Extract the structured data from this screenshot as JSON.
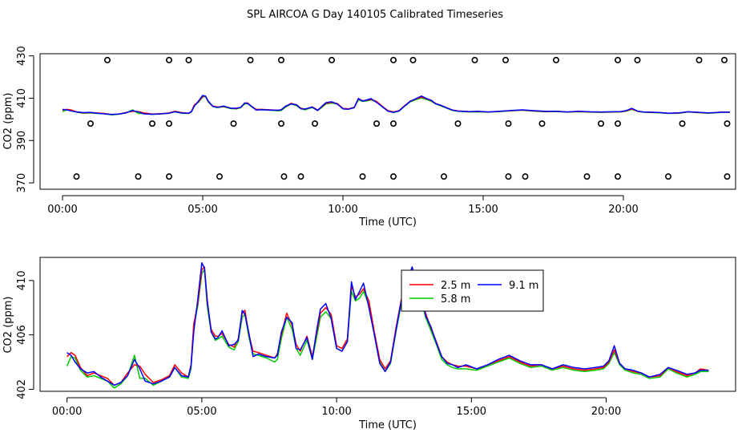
{
  "title": "SPL AIRCOA G  Day 140105  Calibrated Timeseries",
  "colors": {
    "s25": "#ff0000",
    "s58": "#00cc00",
    "s91": "#0000ff",
    "axis": "#000000"
  },
  "chart_data": [
    {
      "type": "line",
      "name": "overview",
      "xlabel": "Time (UTC)",
      "ylabel": "CO2 (ppm)",
      "xlim": [
        -0.8,
        24.0
      ],
      "ylim": [
        367,
        431
      ],
      "x_ticks": [
        0,
        5,
        10,
        15,
        20
      ],
      "x_tick_labels": [
        "00:00",
        "05:00",
        "10:00",
        "15:00",
        "20:00"
      ],
      "y_ticks": [
        370,
        390,
        410,
        430
      ],
      "y_tick_labels": [
        "370",
        "390",
        "410",
        "430"
      ],
      "series": [
        {
          "name": "2.5 m",
          "color_key": "s25"
        },
        {
          "name": "5.8 m",
          "color_key": "s58"
        },
        {
          "name": "9.1 m",
          "color_key": "s91"
        }
      ],
      "calibration_points": {
        "marker": "open-circle",
        "high": {
          "y": 428,
          "x": [
            1.6,
            3.8,
            4.5,
            6.7,
            7.8,
            9.6,
            11.8,
            12.5,
            14.7,
            15.8,
            17.6,
            19.8,
            20.5,
            22.7,
            23.6
          ]
        },
        "mid": {
          "y": 398,
          "x": [
            1.0,
            3.2,
            3.8,
            6.1,
            7.8,
            9.0,
            11.2,
            11.8,
            14.1,
            15.9,
            17.1,
            19.2,
            19.8,
            22.1,
            23.7
          ]
        },
        "low": {
          "y": 373,
          "x": [
            0.5,
            2.7,
            3.8,
            5.6,
            7.9,
            8.5,
            10.7,
            11.8,
            13.6,
            15.9,
            16.5,
            18.7,
            19.8,
            21.6,
            23.7
          ]
        }
      }
    },
    {
      "type": "line",
      "name": "detail",
      "xlabel": "Time (UTC)",
      "ylabel": "CO2 (ppm)",
      "xlim": [
        -1.0,
        24.8
      ],
      "ylim": [
        401.85,
        411.7
      ],
      "x_ticks": [
        0,
        5,
        10,
        15,
        20
      ],
      "x_tick_labels": [
        "00:00",
        "05:00",
        "10:00",
        "15:00",
        "20:00"
      ],
      "y_ticks": [
        402,
        406,
        410
      ],
      "y_tick_labels": [
        "402",
        "406",
        "410"
      ],
      "legend": {
        "position": "top-center",
        "entries": [
          "2.5 m",
          "9.1 m",
          "5.8 m"
        ]
      },
      "x": [
        0.0,
        0.15,
        0.3,
        0.5,
        0.75,
        1.0,
        1.25,
        1.5,
        1.75,
        2.0,
        2.25,
        2.5,
        2.7,
        2.9,
        3.2,
        3.5,
        3.8,
        4.0,
        4.25,
        4.5,
        4.6,
        4.7,
        4.85,
        5.0,
        5.1,
        5.2,
        5.35,
        5.5,
        5.6,
        5.75,
        6.0,
        6.2,
        6.35,
        6.5,
        6.6,
        6.75,
        6.9,
        7.1,
        7.4,
        7.7,
        7.8,
        7.95,
        8.15,
        8.35,
        8.5,
        8.65,
        8.9,
        9.1,
        9.25,
        9.4,
        9.6,
        9.8,
        10.0,
        10.2,
        10.4,
        10.55,
        10.7,
        10.85,
        11.0,
        11.2,
        11.4,
        11.6,
        11.8,
        12.0,
        12.2,
        12.4,
        12.6,
        12.8,
        13.0,
        13.15,
        13.3,
        13.5,
        13.7,
        13.9,
        14.1,
        14.3,
        14.5,
        14.8,
        15.2,
        15.6,
        16.0,
        16.4,
        16.8,
        17.2,
        17.6,
        18.0,
        18.4,
        18.8,
        19.2,
        19.6,
        19.9,
        20.1,
        20.3,
        20.5,
        20.7,
        21.0,
        21.3,
        21.6,
        22.0,
        22.3,
        22.6,
        23.0,
        23.3,
        23.5,
        23.8
      ],
      "series": [
        {
          "name": "2.5 m",
          "color_key": "s25",
          "values": [
            404.4,
            404.7,
            404.5,
            403.6,
            403.0,
            403.2,
            403.0,
            402.8,
            402.3,
            402.5,
            403.2,
            403.8,
            403.7,
            403.1,
            402.5,
            402.7,
            403.0,
            403.8,
            403.2,
            402.9,
            403.8,
            406.8,
            408.3,
            410.8,
            411.0,
            408.4,
            406.4,
            405.9,
            405.9,
            406.1,
            405.3,
            405.1,
            405.7,
            407.6,
            407.8,
            406.0,
            404.8,
            404.7,
            404.5,
            404.3,
            404.6,
            406.0,
            407.6,
            406.7,
            405.3,
            404.8,
            405.9,
            404.4,
            406.0,
            407.6,
            408.0,
            407.5,
            405.2,
            405.0,
            405.7,
            409.6,
            408.8,
            409.0,
            409.4,
            408.5,
            406.2,
            404.2,
            403.5,
            404.1,
            406.5,
            408.6,
            409.6,
            410.5,
            409.6,
            408.8,
            407.6,
            406.5,
            405.5,
            404.4,
            404.0,
            403.8,
            403.7,
            403.7,
            403.5,
            403.8,
            404.1,
            404.4,
            404.0,
            403.7,
            403.8,
            403.5,
            403.7,
            403.5,
            403.4,
            403.5,
            403.6,
            404.0,
            404.9,
            403.9,
            403.5,
            403.3,
            403.2,
            402.9,
            403.0,
            403.6,
            403.3,
            403.0,
            403.2,
            403.5,
            403.4
          ]
        },
        {
          "name": "5.8 m",
          "color_key": "s58",
          "values": [
            403.7,
            404.4,
            404.3,
            403.4,
            402.9,
            403.0,
            402.8,
            402.6,
            402.1,
            402.4,
            403.0,
            404.5,
            402.8,
            402.8,
            402.3,
            402.6,
            402.9,
            403.6,
            402.9,
            402.8,
            403.5,
            406.6,
            408.1,
            410.5,
            410.8,
            408.1,
            406.2,
            405.6,
            405.7,
            405.9,
            405.1,
            404.9,
            405.5,
            407.3,
            407.5,
            405.8,
            404.6,
            404.5,
            404.3,
            404.0,
            404.2,
            405.7,
            407.3,
            406.4,
            405.0,
            404.5,
            405.6,
            404.2,
            405.7,
            407.3,
            407.7,
            407.2,
            405.0,
            404.8,
            405.5,
            409.2,
            408.5,
            408.7,
            409.2,
            408.2,
            406.0,
            404.0,
            403.3,
            403.9,
            406.2,
            408.3,
            409.3,
            410.1,
            409.3,
            408.5,
            407.3,
            406.3,
            405.3,
            404.2,
            403.8,
            403.6,
            403.5,
            403.5,
            403.4,
            403.7,
            404.0,
            404.3,
            403.9,
            403.6,
            403.7,
            403.4,
            403.6,
            403.4,
            403.3,
            403.4,
            403.5,
            403.9,
            404.7,
            403.8,
            403.4,
            403.2,
            403.1,
            402.8,
            402.9,
            403.5,
            403.2,
            402.9,
            403.1,
            403.3,
            403.3
          ]
        },
        {
          "name": "9.1 m",
          "color_key": "s91",
          "values": [
            404.7,
            404.5,
            404.0,
            403.5,
            403.2,
            403.3,
            402.9,
            402.6,
            402.3,
            402.5,
            403.0,
            404.2,
            403.5,
            402.6,
            402.4,
            402.6,
            402.9,
            403.6,
            403.0,
            402.9,
            403.7,
            406.2,
            408.6,
            411.3,
            410.9,
            408.6,
            406.2,
            405.7,
            405.8,
            406.3,
            405.2,
            405.3,
            405.6,
            407.8,
            407.5,
            406.1,
            404.4,
            404.6,
            404.4,
            404.3,
            404.5,
            406.2,
            407.3,
            406.9,
            405.0,
            404.9,
            405.8,
            404.2,
            406.2,
            407.9,
            408.3,
            407.2,
            405.0,
            404.8,
            405.5,
            409.9,
            408.6,
            409.2,
            409.8,
            408.0,
            406.0,
            403.9,
            403.3,
            404.0,
            406.3,
            408.5,
            409.8,
            411.0,
            409.7,
            409.0,
            407.4,
            406.6,
            405.4,
            404.4,
            403.9,
            403.8,
            403.6,
            403.8,
            403.5,
            403.8,
            404.2,
            404.5,
            404.1,
            403.8,
            403.8,
            403.5,
            403.8,
            403.6,
            403.5,
            403.6,
            403.7,
            404.1,
            405.2,
            403.9,
            403.5,
            403.4,
            403.2,
            402.9,
            403.1,
            403.6,
            403.4,
            403.1,
            403.2,
            403.4,
            403.4
          ]
        }
      ]
    }
  ]
}
